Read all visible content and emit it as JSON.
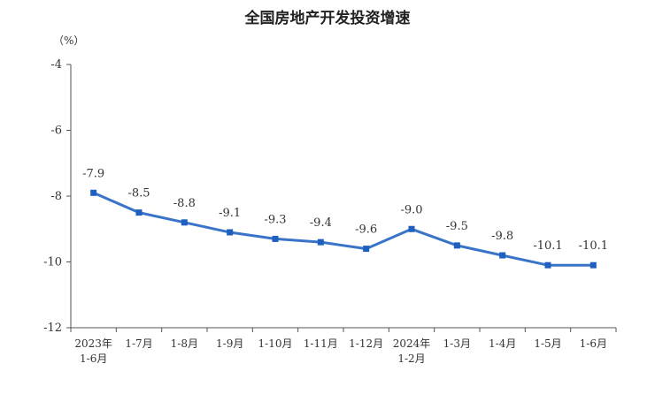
{
  "chart_data": {
    "type": "line",
    "title": "全国房地产开发投资增速",
    "unit_label": "（%）",
    "categories": [
      [
        "2023年",
        "1-6月"
      ],
      [
        "1-7月"
      ],
      [
        "1-8月"
      ],
      [
        "1-9月"
      ],
      [
        "1-10月"
      ],
      [
        "1-11月"
      ],
      [
        "1-12月"
      ],
      [
        "2024年",
        "1-2月"
      ],
      [
        "1-3月"
      ],
      [
        "1-4月"
      ],
      [
        "1-5月"
      ],
      [
        "1-6月"
      ]
    ],
    "values": [
      -7.9,
      -8.5,
      -8.8,
      -9.1,
      -9.3,
      -9.4,
      -9.6,
      -9.0,
      -9.5,
      -9.8,
      -10.1,
      -10.1
    ],
    "data_labels": [
      "-7.9",
      "-8.5",
      "-8.8",
      "-9.1",
      "-9.3",
      "-9.4",
      "-9.6",
      "-9.0",
      "-9.5",
      "-9.8",
      "-10.1",
      "-10.1"
    ],
    "yticks": [
      -4,
      -6,
      -8,
      -10,
      -12
    ],
    "ylim": [
      -12,
      -4
    ],
    "grid": false,
    "line_color": "#3a74c9",
    "marker_color": "#1f5fbf"
  }
}
